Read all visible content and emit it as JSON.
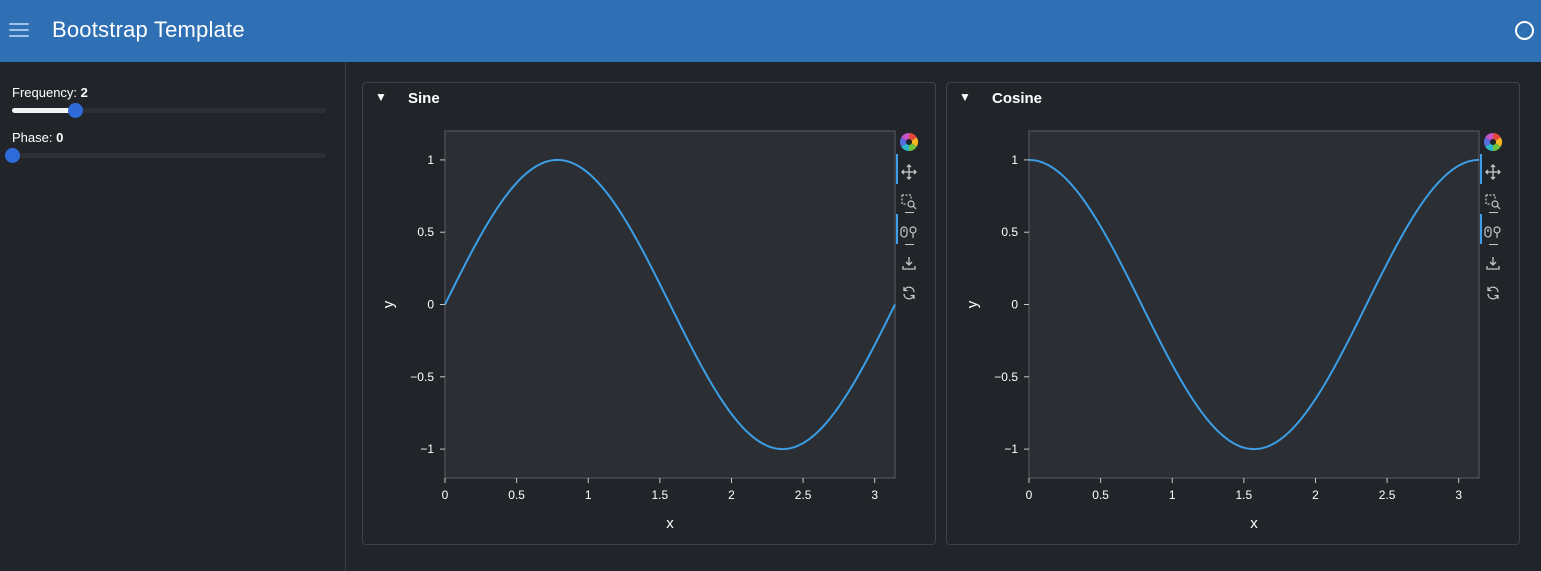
{
  "header": {
    "title": "Bootstrap Template",
    "accent": "#2f6fb3"
  },
  "sidebar": {
    "frequency": {
      "label": "Frequency:",
      "value": "2",
      "fraction": 0.2
    },
    "phase": {
      "label": "Phase:",
      "value": "0",
      "fraction": 0.0
    }
  },
  "cards": [
    {
      "toggle": "▼",
      "title": "Sine",
      "toolbar": [
        "bokeh-logo-icon",
        "pan-icon",
        "box-zoom-icon",
        "wheel-zoom-icon",
        "save-icon",
        "reset-icon"
      ]
    },
    {
      "toggle": "▼",
      "title": "Cosine",
      "toolbar": [
        "bokeh-logo-icon",
        "pan-icon",
        "box-zoom-icon",
        "wheel-zoom-icon",
        "save-icon",
        "reset-icon"
      ]
    }
  ],
  "chart_data": [
    {
      "type": "line",
      "function": "sin(2x)",
      "x_range": [
        0,
        3.14159
      ],
      "y_range": [
        -1.2,
        1.2
      ],
      "xlabel": "x",
      "ylabel": "y",
      "x_ticks": [
        "0",
        "0.5",
        "1",
        "1.5",
        "2",
        "2.5",
        "3"
      ],
      "x_tick_values": [
        0,
        0.5,
        1,
        1.5,
        2,
        2.5,
        3
      ],
      "y_ticks": [
        "1",
        "0.5",
        "0",
        "−0.5",
        "−1"
      ],
      "y_tick_values": [
        1,
        0.5,
        0,
        -0.5,
        -1
      ],
      "line_color": "#3b9ee6"
    },
    {
      "type": "line",
      "function": "cos(2x)",
      "x_range": [
        0,
        3.14159
      ],
      "y_range": [
        -1.2,
        1.2
      ],
      "xlabel": "x",
      "ylabel": "y",
      "x_ticks": [
        "0",
        "0.5",
        "1",
        "1.5",
        "2",
        "2.5",
        "3"
      ],
      "x_tick_values": [
        0,
        0.5,
        1,
        1.5,
        2,
        2.5,
        3
      ],
      "y_ticks": [
        "1",
        "0.5",
        "0",
        "−0.5",
        "−1"
      ],
      "y_tick_values": [
        1,
        0.5,
        0,
        -0.5,
        -1
      ],
      "line_color": "#3b9ee6"
    }
  ]
}
